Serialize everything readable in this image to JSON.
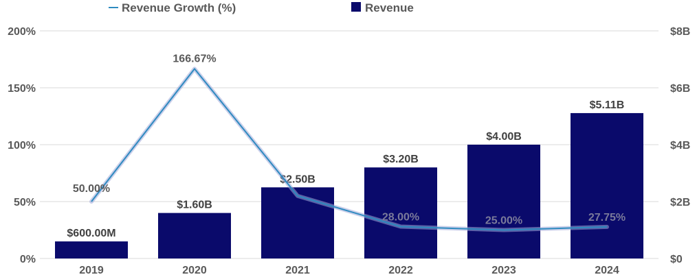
{
  "chart_data": {
    "type": "bar",
    "title": "",
    "categories": [
      "2019",
      "2020",
      "2021",
      "2022",
      "2023",
      "2024"
    ],
    "series": [
      {
        "name": "Revenue",
        "type": "bar",
        "axis": "right",
        "values": [
          0.6,
          1.6,
          2.5,
          3.2,
          4.0,
          5.11
        ],
        "labels": [
          "$600.00M",
          "$1.60B",
          "$2.50B",
          "$3.20B",
          "$4.00B",
          "$5.11B"
        ],
        "color": "#0a0a6b"
      },
      {
        "name": "Revenue Growth (%)",
        "type": "line",
        "axis": "left",
        "values": [
          50.0,
          166.67,
          55.0,
          28.0,
          25.0,
          27.75
        ],
        "labels": [
          "50.00%",
          "166.67%",
          "",
          "28.00%",
          "25.00%",
          "27.75%"
        ],
        "color": "#2e8bc0"
      }
    ],
    "y_left": {
      "ylim": [
        0,
        200
      ],
      "ticks": [
        0,
        50,
        100,
        150,
        200
      ],
      "tick_labels": [
        "0%",
        "50%",
        "100%",
        "150%",
        "200%"
      ]
    },
    "y_right": {
      "ylim": [
        0,
        8
      ],
      "ticks": [
        0,
        2,
        4,
        6,
        8
      ],
      "tick_labels": [
        "$0",
        "$2B",
        "$4B",
        "$6B",
        "$8B"
      ]
    },
    "legend": {
      "placement": "top",
      "entries": [
        "Revenue Growth (%)",
        "Revenue"
      ]
    },
    "grid": true
  }
}
